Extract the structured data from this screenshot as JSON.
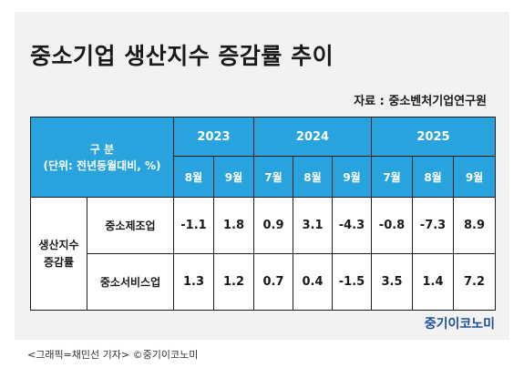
{
  "title": "중소기업 생산지수 증감률 추이",
  "source": "자료 : 중소벤처기업연구원",
  "brand": "중기이코노미",
  "caption": "<그래픽=채민선 기자>   ©중기이코노미",
  "colors": {
    "header": "#29a3de",
    "border": "#1e1e1e",
    "brand": "#1d4f9c"
  },
  "chart_data": {
    "type": "table",
    "title": "중소기업 생산지수 증감률 추이",
    "header": {
      "line1": "구 분",
      "line2": "(단위: 전년동월대비, %)"
    },
    "category": {
      "line1": "생산지수",
      "line2": "증감률"
    },
    "years": [
      "2023",
      "2024",
      "2025"
    ],
    "months": [
      "8월",
      "9월",
      "7월",
      "8월",
      "9월",
      "7월",
      "8월",
      "9월"
    ],
    "rows": [
      {
        "name": "중소제조업",
        "values": [
          "-1.1",
          "1.8",
          "0.9",
          "3.1",
          "-4.3",
          "-0.8",
          "-7.3",
          "8.9"
        ]
      },
      {
        "name": "중소서비스업",
        "values": [
          "1.3",
          "1.2",
          "0.7",
          "0.4",
          "-1.5",
          "3.5",
          "1.4",
          "7.2"
        ]
      }
    ]
  }
}
